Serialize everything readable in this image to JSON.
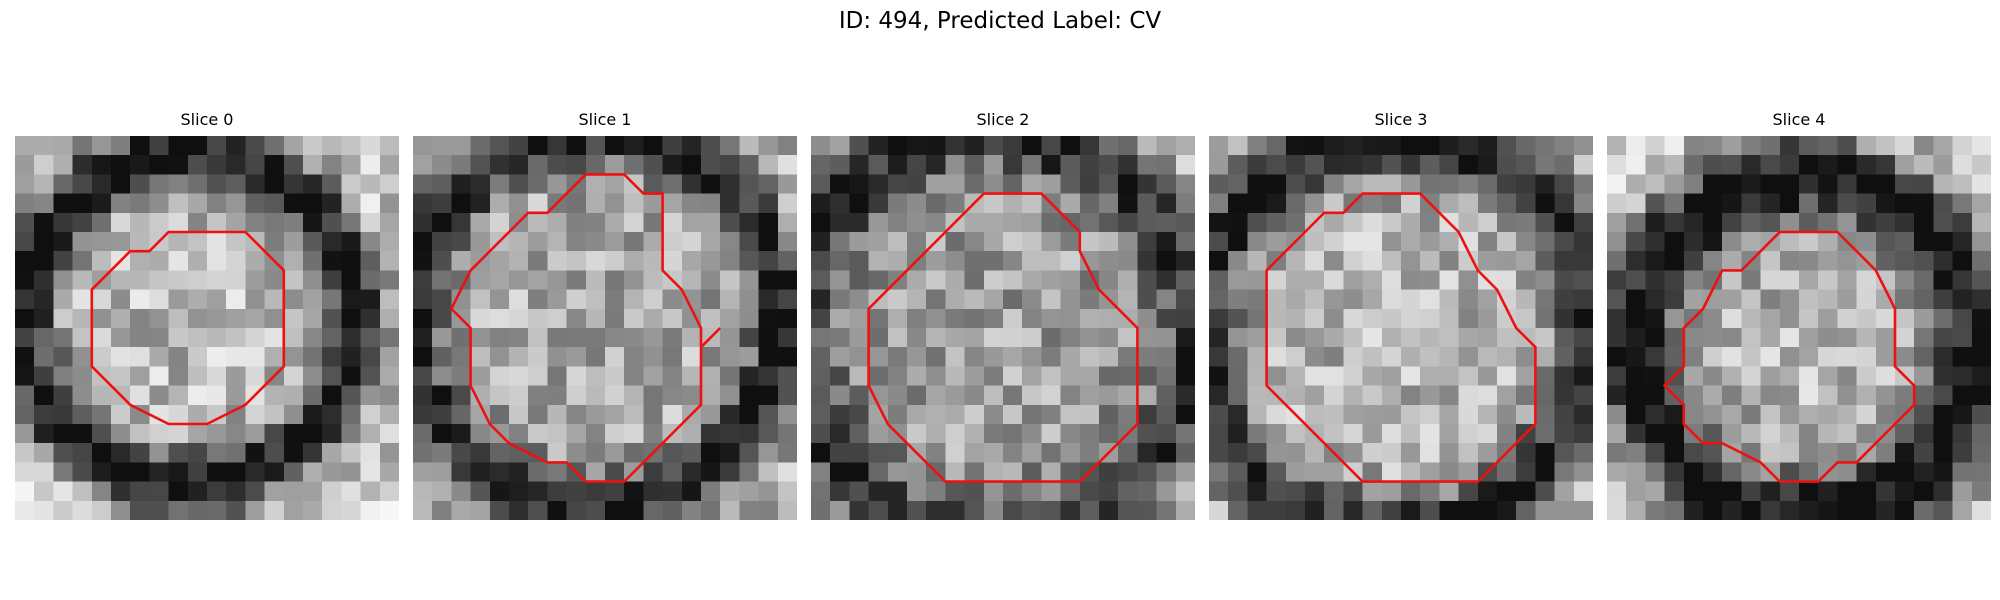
{
  "figure": {
    "title": "ID: 494, Predicted Label: CV"
  },
  "contour_color": "#ee1111",
  "slices": [
    {
      "title": "Slice 0",
      "seed": 11,
      "bg_level": 0.78,
      "inner_level": 0.72,
      "ring_dark": 0.72,
      "ring_radius": 8.6,
      "ring_width": 1.6,
      "center": [
        9.0,
        9.6
      ],
      "contour": [
        [
          10,
          5
        ],
        [
          12,
          5
        ],
        [
          13,
          6
        ],
        [
          14,
          7
        ],
        [
          14,
          12
        ],
        [
          13,
          13
        ],
        [
          12,
          14
        ],
        [
          10,
          15
        ],
        [
          8,
          15
        ],
        [
          6,
          14
        ],
        [
          5,
          13
        ],
        [
          4,
          12
        ],
        [
          4,
          8
        ],
        [
          5,
          7
        ],
        [
          6,
          6
        ],
        [
          7,
          6
        ],
        [
          8,
          5
        ]
      ]
    },
    {
      "title": "Slice 1",
      "seed": 23,
      "bg_level": 0.7,
      "inner_level": 0.66,
      "ring_dark": 0.6,
      "ring_radius": 9.6,
      "ring_width": 1.5,
      "center": [
        9.5,
        9.6
      ],
      "contour": [
        [
          8,
          3
        ],
        [
          9,
          2
        ],
        [
          11,
          2
        ],
        [
          12,
          3
        ],
        [
          13,
          3
        ],
        [
          13,
          5
        ],
        [
          13,
          7
        ],
        [
          14,
          8
        ],
        [
          15,
          10
        ],
        [
          15,
          11
        ],
        [
          16,
          10
        ],
        [
          15,
          11
        ],
        [
          15,
          14
        ],
        [
          14,
          15
        ],
        [
          13,
          16
        ],
        [
          12,
          17
        ],
        [
          11,
          18
        ],
        [
          9,
          18
        ],
        [
          8,
          17
        ],
        [
          7,
          17
        ],
        [
          5,
          16
        ],
        [
          4,
          15
        ],
        [
          3,
          13
        ],
        [
          3,
          10
        ],
        [
          2,
          9
        ],
        [
          3,
          7
        ],
        [
          4,
          6
        ],
        [
          5,
          5
        ],
        [
          6,
          4
        ],
        [
          7,
          4
        ]
      ]
    },
    {
      "title": "Slice 2",
      "seed": 37,
      "bg_level": 0.72,
      "inner_level": 0.62,
      "ring_dark": 0.55,
      "ring_radius": 10.4,
      "ring_width": 2.0,
      "center": [
        9.5,
        10.4
      ],
      "contour": [
        [
          9,
          3
        ],
        [
          12,
          3
        ],
        [
          13,
          4
        ],
        [
          14,
          5
        ],
        [
          14,
          6
        ],
        [
          15,
          8
        ],
        [
          16,
          9
        ],
        [
          17,
          10
        ],
        [
          17,
          15
        ],
        [
          16,
          16
        ],
        [
          15,
          17
        ],
        [
          14,
          18
        ],
        [
          7,
          18
        ],
        [
          6,
          17
        ],
        [
          5,
          16
        ],
        [
          4,
          15
        ],
        [
          3,
          13
        ],
        [
          3,
          9
        ],
        [
          4,
          8
        ],
        [
          5,
          7
        ],
        [
          6,
          6
        ],
        [
          7,
          5
        ],
        [
          8,
          4
        ]
      ]
    },
    {
      "title": "Slice 3",
      "seed": 49,
      "bg_level": 0.74,
      "inner_level": 0.7,
      "ring_dark": 0.62,
      "ring_radius": 10.2,
      "ring_width": 1.8,
      "center": [
        9.6,
        10.4
      ],
      "contour": [
        [
          8,
          3
        ],
        [
          11,
          3
        ],
        [
          12,
          4
        ],
        [
          13,
          5
        ],
        [
          14,
          7
        ],
        [
          15,
          8
        ],
        [
          16,
          10
        ],
        [
          17,
          11
        ],
        [
          17,
          15
        ],
        [
          16,
          16
        ],
        [
          15,
          17
        ],
        [
          14,
          18
        ],
        [
          8,
          18
        ],
        [
          7,
          17
        ],
        [
          6,
          16
        ],
        [
          4,
          14
        ],
        [
          3,
          13
        ],
        [
          3,
          7
        ],
        [
          4,
          6
        ],
        [
          5,
          5
        ],
        [
          6,
          4
        ],
        [
          7,
          4
        ]
      ]
    },
    {
      "title": "Slice 4",
      "seed": 61,
      "bg_level": 0.8,
      "inner_level": 0.7,
      "ring_dark": 0.78,
      "ring_radius": 8.8,
      "ring_width": 2.2,
      "center": [
        10.4,
        11.0
      ],
      "contour": [
        [
          9,
          5
        ],
        [
          12,
          5
        ],
        [
          13,
          6
        ],
        [
          14,
          7
        ],
        [
          15,
          9
        ],
        [
          15,
          12
        ],
        [
          16,
          13
        ],
        [
          16,
          14
        ],
        [
          15,
          15
        ],
        [
          14,
          16
        ],
        [
          13,
          17
        ],
        [
          12,
          17
        ],
        [
          11,
          18
        ],
        [
          9,
          18
        ],
        [
          8,
          17
        ],
        [
          6,
          16
        ],
        [
          5,
          16
        ],
        [
          4,
          15
        ],
        [
          4,
          14
        ],
        [
          3,
          13
        ],
        [
          4,
          12
        ],
        [
          4,
          10
        ],
        [
          5,
          9
        ],
        [
          6,
          7
        ],
        [
          7,
          7
        ],
        [
          8,
          6
        ]
      ]
    }
  ]
}
